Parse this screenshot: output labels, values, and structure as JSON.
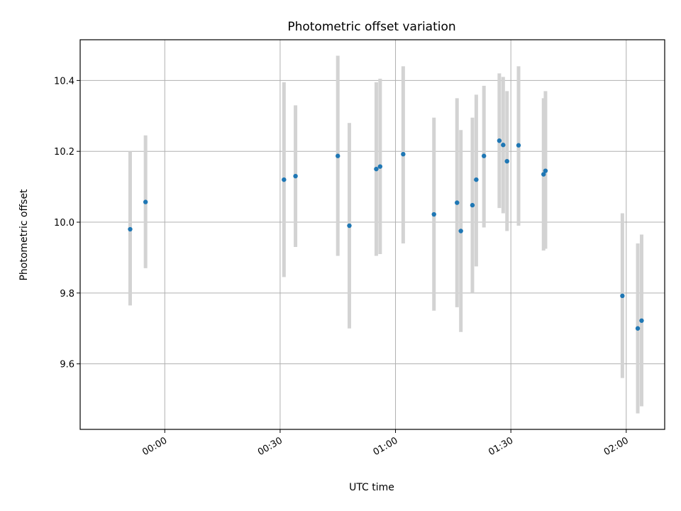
{
  "chart_data": {
    "type": "scatter",
    "title": "Photometric offset variation",
    "xlabel": "UTC time",
    "ylabel": "Photometric offset",
    "x_is_time": true,
    "xlim": [
      "23:38",
      "02:10"
    ],
    "ylim": [
      9.415,
      10.515
    ],
    "x_ticks": [
      "00:00",
      "00:30",
      "01:00",
      "01:30",
      "02:00"
    ],
    "y_ticks": [
      9.6,
      9.8,
      10.0,
      10.2,
      10.4
    ],
    "grid": true,
    "colors": {
      "point": "#1f77b4",
      "errorbar": "#d3d3d3",
      "grid": "#b0b0b0"
    },
    "series": [
      {
        "points": [
          {
            "x": "23:51:00",
            "y": 9.98,
            "y_low": 9.765,
            "y_high": 10.2
          },
          {
            "x": "23:55:00",
            "y": 10.057,
            "y_low": 9.87,
            "y_high": 10.245
          },
          {
            "x": "00:31:00",
            "y": 10.12,
            "y_low": 9.845,
            "y_high": 10.395
          },
          {
            "x": "00:34:00",
            "y": 10.13,
            "y_low": 9.93,
            "y_high": 10.33
          },
          {
            "x": "00:45:00",
            "y": 10.187,
            "y_low": 9.905,
            "y_high": 10.47
          },
          {
            "x": "00:48:00",
            "y": 9.99,
            "y_low": 9.7,
            "y_high": 10.28
          },
          {
            "x": "00:55:00",
            "y": 10.15,
            "y_low": 9.905,
            "y_high": 10.395
          },
          {
            "x": "00:56:00",
            "y": 10.157,
            "y_low": 9.91,
            "y_high": 10.405
          },
          {
            "x": "01:02:00",
            "y": 10.192,
            "y_low": 9.94,
            "y_high": 10.44
          },
          {
            "x": "01:10:00",
            "y": 10.022,
            "y_low": 9.75,
            "y_high": 10.295
          },
          {
            "x": "01:16:00",
            "y": 10.055,
            "y_low": 9.76,
            "y_high": 10.35
          },
          {
            "x": "01:17:00",
            "y": 9.975,
            "y_low": 9.69,
            "y_high": 10.26
          },
          {
            "x": "01:20:00",
            "y": 10.048,
            "y_low": 9.8,
            "y_high": 10.295
          },
          {
            "x": "01:21:00",
            "y": 10.12,
            "y_low": 9.875,
            "y_high": 10.36
          },
          {
            "x": "01:23:00",
            "y": 10.187,
            "y_low": 9.985,
            "y_high": 10.385
          },
          {
            "x": "01:27:00",
            "y": 10.23,
            "y_low": 10.04,
            "y_high": 10.42
          },
          {
            "x": "01:28:00",
            "y": 10.218,
            "y_low": 10.025,
            "y_high": 10.41
          },
          {
            "x": "01:29:00",
            "y": 10.172,
            "y_low": 9.975,
            "y_high": 10.37
          },
          {
            "x": "01:32:00",
            "y": 10.217,
            "y_low": 9.99,
            "y_high": 10.44
          },
          {
            "x": "01:38:30",
            "y": 10.135,
            "y_low": 9.92,
            "y_high": 10.35
          },
          {
            "x": "01:39:00",
            "y": 10.145,
            "y_low": 9.925,
            "y_high": 10.37
          },
          {
            "x": "01:59:00",
            "y": 9.792,
            "y_low": 9.56,
            "y_high": 10.025
          },
          {
            "x": "02:03:00",
            "y": 9.7,
            "y_low": 9.46,
            "y_high": 9.94
          },
          {
            "x": "02:04:00",
            "y": 9.722,
            "y_low": 9.48,
            "y_high": 9.965
          }
        ]
      }
    ]
  }
}
